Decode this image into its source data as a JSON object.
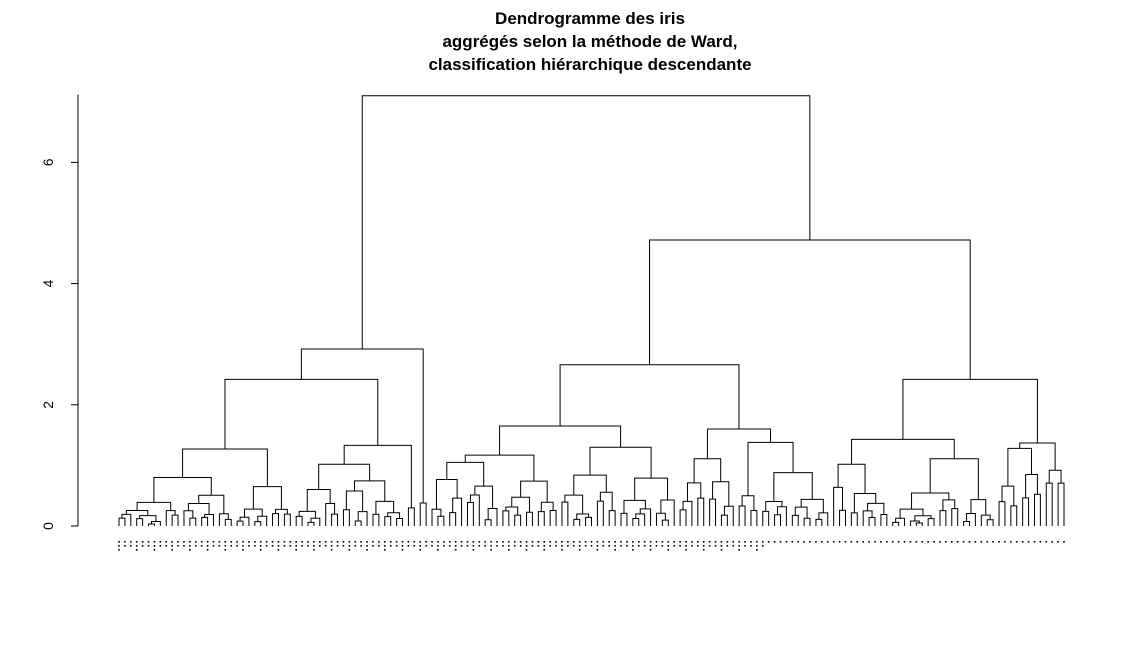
{
  "chart_data": {
    "type": "dendrogram",
    "title_lines": [
      "Dendrogramme des iris",
      "aggrégés selon la méthode de Ward,",
      "classification hiérarchique descendante"
    ],
    "xlabel": "",
    "ylabel": "",
    "ylim": [
      0,
      7.2
    ],
    "y_ticks": [
      {
        "value": 0,
        "label": "0"
      },
      {
        "value": 2,
        "label": "2"
      },
      {
        "value": 4,
        "label": "4"
      },
      {
        "value": 6,
        "label": "6"
      }
    ],
    "leaf_count": 150,
    "root_height": 7.1,
    "clusters": [
      {
        "name_hint": "",
        "leaves": 55,
        "height": 2.92,
        "children_heights": [
          2.42,
          0.38
        ]
      },
      {
        "name_hint": "",
        "leaves": 95,
        "height": 4.72,
        "children_heights": [
          2.66,
          2.42
        ]
      }
    ],
    "merge_heights_level3": [
      1.27,
      1.33,
      1.65,
      1.6,
      1.43,
      1.37
    ],
    "grid": false,
    "legend": "none"
  }
}
